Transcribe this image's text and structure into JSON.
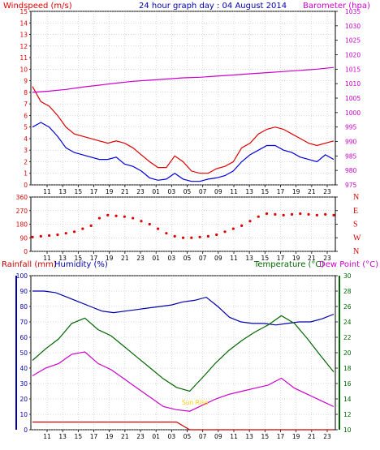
{
  "header": {
    "windspeed_label": "Windspeed (m/s)",
    "title": "24 hour graph day : 04 August 2014",
    "barometer_label": "Barometer (hpa)"
  },
  "bottom_header": {
    "rainfall_label": "Rainfall (mm)",
    "humidity_label": "Humidity (%)",
    "temperature_label": "Temperature (°C)",
    "dewpoint_label": "Dew Point (°C)"
  },
  "annotation": "Sun Rise",
  "colors": {
    "wind": "#dd0000",
    "gust_avg": "#0000dd",
    "barometer": "#cc00cc",
    "direction": "#dd0000",
    "rainfall": "#cc0000",
    "humidity": "#0000aa",
    "temperature": "#006600",
    "dewpoint": "#cc00cc",
    "sunrise": "#ffcc00",
    "grid": "#b0b0b0"
  },
  "chart_data": [
    {
      "type": "line",
      "name": "wind-chart",
      "x_ticks": [
        "11",
        "13",
        "15",
        "17",
        "19",
        "21",
        "23",
        "01",
        "03",
        "05",
        "07",
        "09",
        "11",
        "13",
        "15",
        "17",
        "19",
        "21",
        "23"
      ],
      "left_axis": {
        "label": "Windspeed (m/s)",
        "ylim": [
          0,
          15
        ],
        "ticks": [
          0,
          1,
          2,
          3,
          4,
          5,
          6,
          7,
          8,
          9,
          10,
          11,
          12,
          13,
          14,
          15
        ]
      },
      "right_axis": {
        "label": "Barometer (hpa)",
        "ylim": [
          975,
          1035
        ],
        "ticks": [
          975,
          980,
          985,
          990,
          995,
          1000,
          1005,
          1010,
          1015,
          1020,
          1025,
          1030,
          1035
        ]
      },
      "grid": true,
      "series": [
        {
          "color": "red",
          "axis": "left",
          "values": [
            8.5,
            7.2,
            6.8,
            6.0,
            5.0,
            4.4,
            4.2,
            4.0,
            3.8,
            3.6,
            3.8,
            3.6,
            3.2,
            2.6,
            2.0,
            1.5,
            1.5,
            2.5,
            2.0,
            1.2,
            1.0,
            1.0,
            1.4,
            1.6,
            2.0,
            3.2,
            3.6,
            4.4,
            4.8,
            5.0,
            4.8,
            4.4,
            4.0,
            3.6,
            3.4,
            3.6,
            3.8
          ]
        },
        {
          "color": "blue",
          "axis": "left",
          "values": [
            5.0,
            5.4,
            5.0,
            4.2,
            3.2,
            2.8,
            2.6,
            2.4,
            2.2,
            2.2,
            2.4,
            1.8,
            1.6,
            1.2,
            0.6,
            0.4,
            0.5,
            1.0,
            0.5,
            0.3,
            0.3,
            0.5,
            0.6,
            0.8,
            1.2,
            2.0,
            2.6,
            3.0,
            3.4,
            3.4,
            3.0,
            2.8,
            2.4,
            2.2,
            2.0,
            2.6,
            2.2
          ]
        },
        {
          "color": "magenta",
          "axis": "right",
          "values": [
            1007.0,
            1007.4,
            1008.0,
            1008.8,
            1009.5,
            1010.2,
            1010.8,
            1011.2,
            1011.6,
            1012.0,
            1012.2,
            1012.6,
            1013.0,
            1013.4,
            1013.8,
            1014.2,
            1014.6,
            1015.0,
            1015.6
          ]
        }
      ]
    },
    {
      "type": "scatter",
      "name": "wind-direction-chart",
      "x_ticks": [
        "11",
        "13",
        "15",
        "17",
        "19",
        "21",
        "23",
        "01",
        "03",
        "05",
        "07",
        "09",
        "11",
        "13",
        "15",
        "17",
        "19",
        "21",
        "23"
      ],
      "left_axis": {
        "ylim": [
          0,
          360
        ],
        "ticks": [
          0,
          90,
          180,
          270,
          360
        ]
      },
      "right_axis": {
        "ticks": [
          "N",
          "W",
          "S",
          "E",
          "N"
        ]
      },
      "grid": true,
      "series": [
        {
          "color": "red",
          "values": [
            95,
            100,
            105,
            110,
            120,
            130,
            150,
            170,
            220,
            240,
            235,
            230,
            220,
            200,
            180,
            150,
            120,
            100,
            90,
            90,
            95,
            100,
            110,
            130,
            150,
            170,
            200,
            230,
            250,
            245,
            240,
            245,
            250,
            245,
            240,
            245,
            240
          ]
        }
      ]
    },
    {
      "type": "line",
      "name": "humidity-temperature-chart",
      "x_ticks": [
        "11",
        "13",
        "15",
        "17",
        "19",
        "21",
        "23",
        "01",
        "03",
        "05",
        "07",
        "09",
        "11",
        "13",
        "15",
        "17",
        "19",
        "21",
        "23"
      ],
      "left_axis": {
        "label": "Rainfall (mm) / Humidity (%)",
        "ylim": [
          0,
          100
        ],
        "ticks": [
          0,
          10,
          20,
          30,
          40,
          50,
          60,
          70,
          80,
          90,
          100
        ]
      },
      "right_axis": {
        "label": "Temperature (°C) / Dew Point (°C)",
        "ylim": [
          10,
          30
        ],
        "ticks": [
          10,
          12,
          14,
          16,
          18,
          20,
          22,
          24,
          26,
          28,
          30
        ]
      },
      "grid": true,
      "series": [
        {
          "color": "blue",
          "axis": "left",
          "values": [
            90,
            90,
            89,
            86,
            83,
            80,
            77,
            76,
            77,
            78,
            79,
            80,
            81,
            83,
            84,
            86,
            80,
            73,
            70,
            69,
            69,
            68,
            69,
            70,
            70,
            72,
            75
          ]
        },
        {
          "color": "green",
          "axis": "right",
          "values": [
            19.0,
            20.5,
            21.8,
            23.8,
            24.5,
            23.0,
            22.2,
            20.8,
            19.4,
            18.0,
            16.6,
            15.5,
            15.0,
            16.8,
            18.7,
            20.3,
            21.6,
            22.7,
            23.6,
            24.8,
            23.8,
            21.8,
            19.6,
            17.5
          ]
        },
        {
          "color": "magenta",
          "axis": "right",
          "values": [
            17.0,
            18.0,
            18.6,
            19.8,
            20.1,
            18.6,
            17.8,
            16.6,
            15.4,
            14.2,
            13.0,
            12.6,
            12.4,
            13.2,
            14.0,
            14.6,
            15.0,
            15.4,
            15.8,
            16.7,
            15.4,
            14.6,
            13.8,
            13.0
          ]
        },
        {
          "color": "red",
          "axis": "left",
          "name": "Rainfall",
          "values": [
            5,
            5,
            5,
            5,
            5,
            5,
            5,
            5,
            5,
            5,
            5,
            5,
            0,
            0,
            0,
            0,
            0,
            0,
            0,
            0,
            0,
            0,
            0,
            0
          ]
        }
      ]
    }
  ]
}
